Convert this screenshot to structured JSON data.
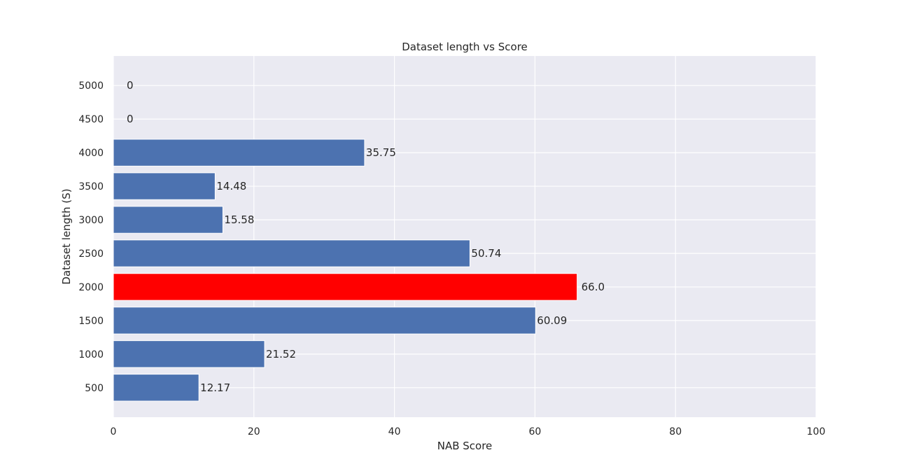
{
  "chart_data": {
    "type": "bar",
    "orientation": "horizontal",
    "title": "Dataset length vs Score",
    "xlabel": "NAB Score",
    "ylabel": "Dataset length (S)",
    "xlim": [
      0,
      100
    ],
    "xticks": [
      "0",
      "20",
      "40",
      "60",
      "80",
      "100"
    ],
    "categories": [
      "500",
      "1000",
      "1500",
      "2000",
      "2500",
      "3000",
      "3500",
      "4000",
      "4500",
      "5000"
    ],
    "values": [
      12.17,
      21.52,
      60.09,
      66.0,
      50.74,
      15.58,
      14.48,
      35.75,
      0,
      0
    ],
    "data_labels": [
      "12.17",
      "21.52",
      "60.09",
      "66.0",
      "50.74",
      "15.58",
      "14.48",
      "35.75",
      "0",
      "0"
    ],
    "colors": [
      "#4c72b0",
      "#4c72b0",
      "#4c72b0",
      "#ff0000",
      "#4c72b0",
      "#4c72b0",
      "#4c72b0",
      "#4c72b0",
      "#4c72b0",
      "#4c72b0"
    ],
    "plot_background": "#eaeaf2",
    "grid": true,
    "legend": "none"
  }
}
